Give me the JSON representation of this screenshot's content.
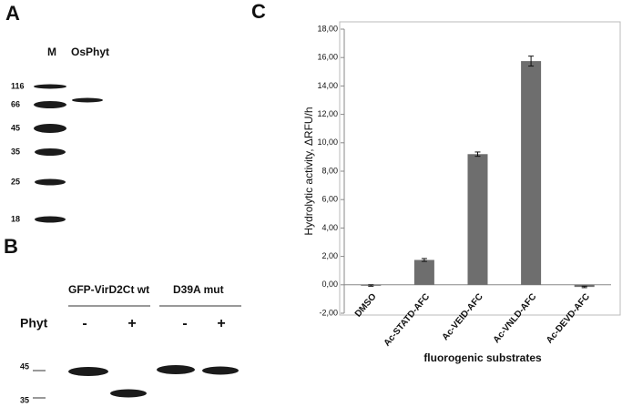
{
  "panel_a": {
    "letter": "A",
    "lanes": [
      "M",
      "OsPhyt"
    ],
    "markers": [
      116,
      66,
      45,
      35,
      25,
      18
    ]
  },
  "panel_b": {
    "letter": "B",
    "groups": [
      "GFP-VirD2Ct wt",
      "D39A mut"
    ],
    "row_label": "Phyt",
    "treatments": [
      "-",
      "+",
      "-",
      "+"
    ],
    "markers": [
      45,
      35
    ]
  },
  "chart_data": {
    "type": "bar",
    "panel_label": "C",
    "x_label": "fluorogenic substrates",
    "y_label": "Hydrolytic activity, ΔRFU/h",
    "categories": [
      "DMSO",
      "Ac-STATD-AFC",
      "Ac-VEID-AFC",
      "Ac-VNLD-AFC",
      "Ac-DEVD-AFC"
    ],
    "values": [
      -0.05,
      1.75,
      9.2,
      15.75,
      -0.15
    ],
    "errors": [
      0.05,
      0.1,
      0.15,
      0.35,
      0.05
    ],
    "color": "#6e6e6e",
    "ylim": [
      -2,
      18
    ],
    "yticks": [
      {
        "value": -2,
        "label": "-2,00"
      },
      {
        "value": 0,
        "label": "0,00"
      },
      {
        "value": 2,
        "label": "2,00"
      },
      {
        "value": 4,
        "label": "4,00"
      },
      {
        "value": 6,
        "label": "6,00"
      },
      {
        "value": 8,
        "label": "8,00"
      },
      {
        "value": 10,
        "label": "10,00"
      },
      {
        "value": 12,
        "label": "12,00"
      },
      {
        "value": 14,
        "label": "14,00"
      },
      {
        "value": 16,
        "label": "16,00"
      },
      {
        "value": 18,
        "label": "18,00"
      }
    ],
    "grid": false
  }
}
